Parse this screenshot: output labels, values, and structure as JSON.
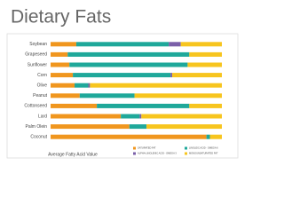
{
  "chart_data": {
    "type": "stacked_bar_horizontal",
    "title": "Dietary Fats",
    "x_label": "Average Fatty Acid Value",
    "categories": [
      "Soybean",
      "Grapeseed",
      "Sunflower",
      "Corn",
      "Olive",
      "Peanut",
      "Cottonseed",
      "Lard",
      "Palm Olein",
      "Coconut"
    ],
    "series": [
      {
        "name": "SATURATED FAT",
        "color": "#f0961e",
        "values": [
          15,
          10,
          11,
          13,
          14,
          17,
          27,
          41,
          46,
          91
        ]
      },
      {
        "name": "LINOLEIC ACID - OMEGA 6",
        "color": "#1fa89a",
        "values": [
          54,
          71,
          69,
          57,
          8,
          32,
          54,
          11,
          10,
          2
        ]
      },
      {
        "name": "ALPHA-LINOLENIC ACID - OMEGA 3",
        "color": "#7a5fa8",
        "values": [
          7,
          0,
          0,
          1,
          1,
          0,
          0,
          1,
          0,
          0
        ]
      },
      {
        "name": "MONOUNSATURATED FAT",
        "color": "#f7c51e",
        "values": [
          24,
          19,
          20,
          29,
          77,
          51,
          19,
          47,
          44,
          7
        ]
      }
    ],
    "xlim": [
      0,
      100
    ],
    "legend": "lower right"
  }
}
